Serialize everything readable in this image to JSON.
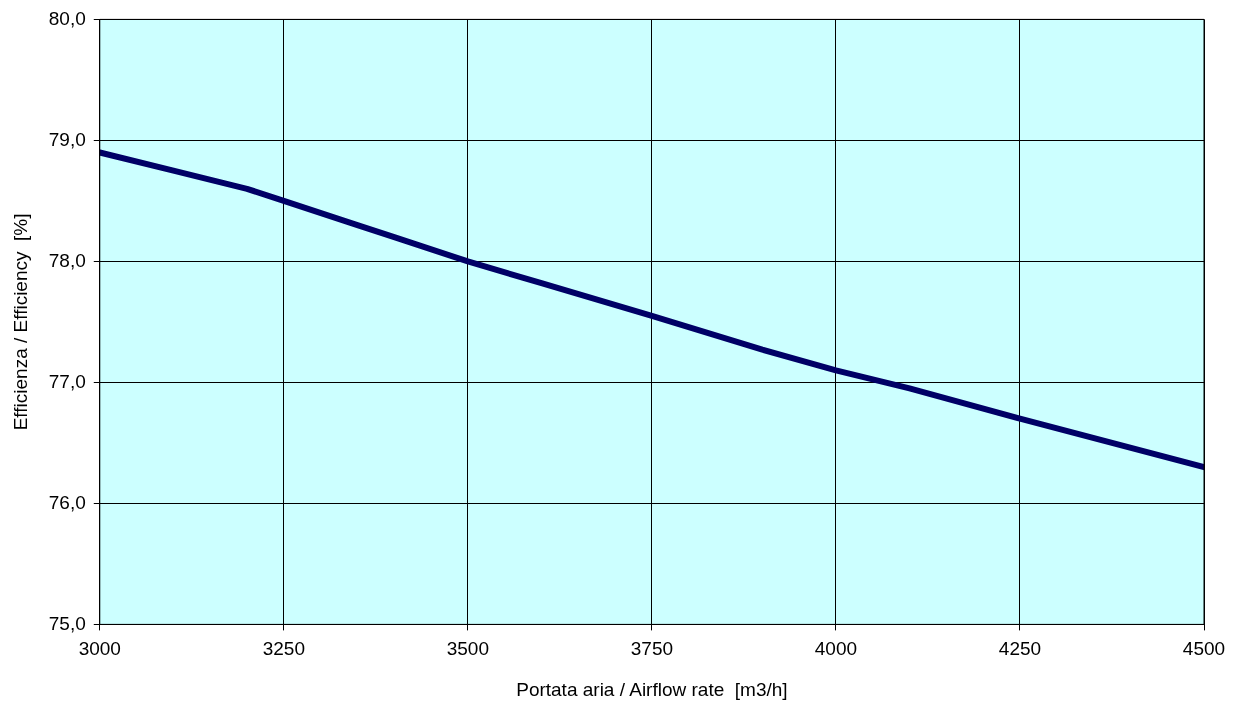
{
  "chart_data": {
    "type": "line",
    "xlabel": "Portata aria / Airflow rate  [m3/h]",
    "ylabel": "Efficienza / Efficiency  [%]",
    "x": [
      3000,
      3100,
      3200,
      3250,
      3350,
      3400,
      3500,
      3600,
      3750,
      3900,
      4000,
      4100,
      4250,
      4500
    ],
    "series": [
      {
        "color": "#000066",
        "values": [
          78.9,
          78.75,
          78.6,
          78.5,
          78.3,
          78.2,
          78.0,
          77.82,
          77.55,
          77.27,
          77.1,
          76.95,
          76.7,
          76.3
        ]
      }
    ],
    "xlim": [
      3000,
      4500
    ],
    "xticks": [
      3000,
      3250,
      3500,
      3750,
      4000,
      4250,
      4500
    ],
    "ylim": [
      75,
      80
    ],
    "yticks": [
      {
        "value": 75,
        "label": "75,0"
      },
      {
        "value": 76,
        "label": "76,0"
      },
      {
        "value": 77,
        "label": "77,0"
      },
      {
        "value": 78,
        "label": "78,0"
      },
      {
        "value": 79,
        "label": "79,0"
      },
      {
        "value": 80,
        "label": "80,0"
      }
    ],
    "grid": true,
    "legend": false,
    "marker": "none",
    "line_style": "solid"
  }
}
